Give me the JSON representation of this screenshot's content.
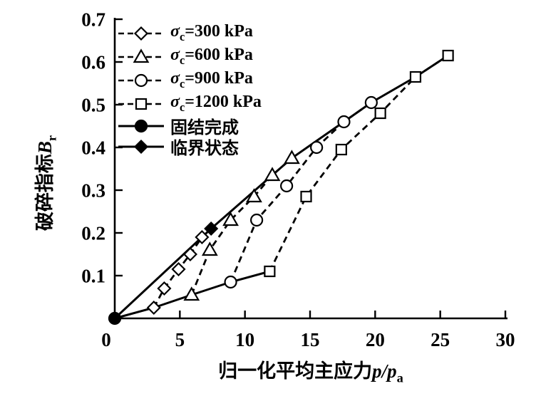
{
  "colors": {
    "ink": "#000000",
    "background": "#ffffff"
  },
  "legend": {
    "items": [
      {
        "sigma": "σ",
        "sub": "c",
        "value": "=300 kPa",
        "marker": "diamond",
        "line": "dashed"
      },
      {
        "sigma": "σ",
        "sub": "c",
        "value": "=600 kPa",
        "marker": "triangle",
        "line": "dashed"
      },
      {
        "sigma": "σ",
        "sub": "c",
        "value": "=900 kPa",
        "marker": "circle",
        "line": "dashed"
      },
      {
        "sigma": "σ",
        "sub": "c",
        "value": "=1200 kPa",
        "marker": "square",
        "line": "dashed"
      },
      {
        "value": "固结完成",
        "marker": "circle-filled",
        "line": "solid"
      },
      {
        "value": "临界状态",
        "marker": "diamond-filled",
        "line": "solid"
      }
    ]
  },
  "chart_data": {
    "type": "line",
    "xlabel": {
      "text": "归一化平均主应力",
      "var": "p/p",
      "var_sub": "a"
    },
    "ylabel": {
      "text": "破碎指标",
      "var": "B",
      "var_sub": "r"
    },
    "xlim": [
      0,
      30
    ],
    "ylim": [
      0,
      0.7
    ],
    "x_ticks": [
      "0",
      "5",
      "10",
      "15",
      "20",
      "25",
      "30"
    ],
    "y_ticks": [
      "0.1",
      "0.2",
      "0.3",
      "0.4",
      "0.5",
      "0.6",
      "0.7"
    ],
    "grid": false,
    "legend_position": "top-left",
    "series": [
      {
        "name": "σc=300 kPa",
        "marker": "diamond",
        "line": "dashed",
        "skip_last_marker": true,
        "points": [
          [
            3.0,
            0.025
          ],
          [
            3.8,
            0.07
          ],
          [
            4.9,
            0.115
          ],
          [
            5.8,
            0.15
          ],
          [
            6.7,
            0.19
          ],
          [
            7.4,
            0.21
          ]
        ]
      },
      {
        "name": "σc=600 kPa",
        "marker": "triangle",
        "line": "dashed",
        "points": [
          [
            5.9,
            0.055
          ],
          [
            7.3,
            0.16
          ],
          [
            8.9,
            0.23
          ],
          [
            10.7,
            0.285
          ],
          [
            12.1,
            0.335
          ],
          [
            13.6,
            0.375
          ]
        ]
      },
      {
        "name": "σc=900 kPa",
        "marker": "circle",
        "line": "dashed",
        "points": [
          [
            8.9,
            0.085
          ],
          [
            10.9,
            0.23
          ],
          [
            13.2,
            0.31
          ],
          [
            15.5,
            0.4
          ],
          [
            17.6,
            0.46
          ],
          [
            19.7,
            0.505
          ]
        ]
      },
      {
        "name": "σc=1200 kPa",
        "marker": "square",
        "line": "dashed",
        "points": [
          [
            11.9,
            0.11
          ],
          [
            14.7,
            0.285
          ],
          [
            17.4,
            0.395
          ],
          [
            20.4,
            0.48
          ],
          [
            23.1,
            0.565
          ],
          [
            25.6,
            0.615
          ]
        ]
      }
    ],
    "solid_lines": [
      {
        "name": "固结完成",
        "marker": "circle-filled",
        "marker_at": [
          [
            0,
            0
          ]
        ],
        "points": [
          [
            0,
            0
          ],
          [
            3.0,
            0.025
          ],
          [
            5.9,
            0.055
          ],
          [
            8.9,
            0.085
          ],
          [
            11.9,
            0.11
          ]
        ]
      },
      {
        "name": "临界状态",
        "marker": "diamond-filled",
        "marker_at": [
          [
            7.4,
            0.21
          ]
        ],
        "points": [
          [
            0,
            0
          ],
          [
            7.4,
            0.21
          ],
          [
            13.6,
            0.375
          ],
          [
            17.6,
            0.46
          ],
          [
            19.7,
            0.505
          ],
          [
            23.1,
            0.565
          ],
          [
            25.6,
            0.615
          ]
        ]
      }
    ]
  }
}
